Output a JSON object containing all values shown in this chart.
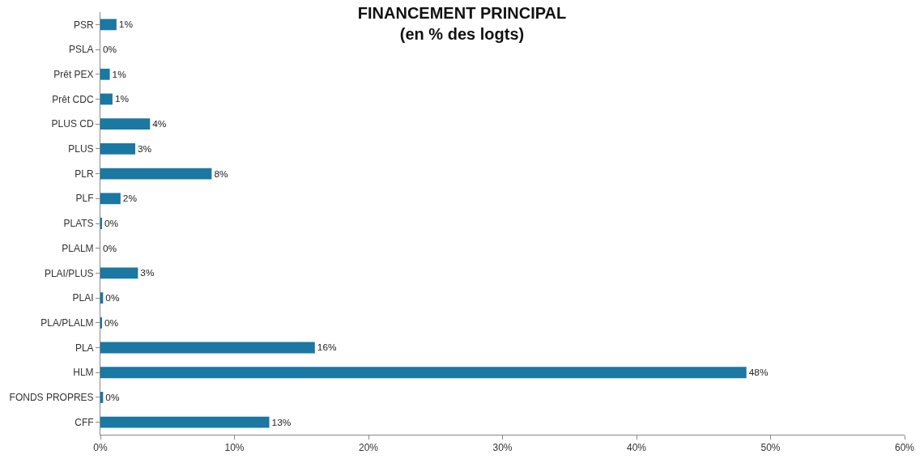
{
  "chart_data": {
    "type": "bar",
    "orientation": "horizontal",
    "title": "FINANCEMENT PRINCIPAL\n(en % des logts)",
    "categories": [
      "PSR",
      "PSLA",
      "Prêt PEX",
      "Prêt CDC",
      "PLUS CD",
      "PLUS",
      "PLR",
      "PLF",
      "PLATS",
      "PLALM",
      "PLAI/PLUS",
      "PLAI",
      "PLA/PLALM",
      "PLA",
      "HLM",
      "FONDS PROPRES",
      "CFF"
    ],
    "values": [
      1.2,
      0,
      0.7,
      0.9,
      3.7,
      2.6,
      8.3,
      1.5,
      0.1,
      0,
      2.8,
      0.2,
      0.1,
      16.0,
      48.2,
      0.2,
      12.6
    ],
    "value_labels": [
      "1%",
      "0%",
      "1%",
      "1%",
      "4%",
      "3%",
      "8%",
      "2%",
      "0%",
      "0%",
      "3%",
      "0%",
      "0%",
      "16%",
      "48%",
      "0%",
      "13%"
    ],
    "color": "#1a78a2",
    "xlim": [
      0,
      60
    ],
    "xticks": [
      {
        "value": 0,
        "label": "0%"
      },
      {
        "value": 10,
        "label": "10%"
      },
      {
        "value": 20,
        "label": "20%"
      },
      {
        "value": 30,
        "label": "30%"
      },
      {
        "value": 40,
        "label": "40%"
      },
      {
        "value": 50,
        "label": "50%"
      },
      {
        "value": 60,
        "label": "60%"
      }
    ],
    "legend": false
  }
}
